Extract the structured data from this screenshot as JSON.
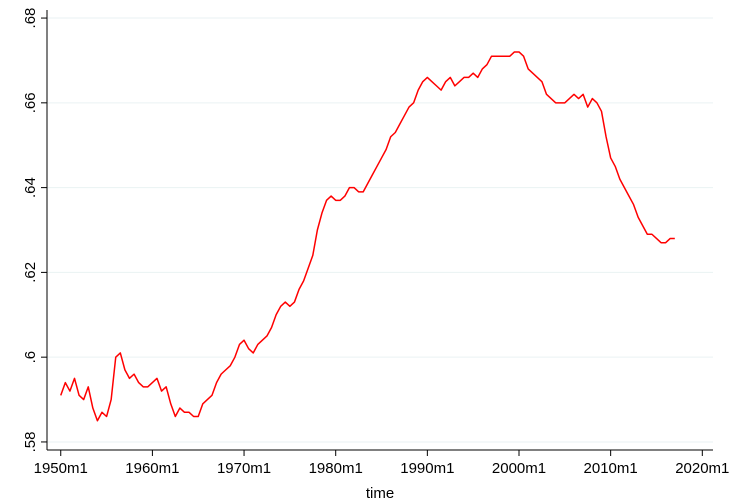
{
  "chart_data": {
    "type": "line",
    "x_label": "time",
    "x": [
      "1950m1",
      "1950m7",
      "1951m1",
      "1951m7",
      "1952m1",
      "1952m7",
      "1953m1",
      "1953m7",
      "1954m1",
      "1954m7",
      "1955m1",
      "1955m7",
      "1956m1",
      "1956m7",
      "1957m1",
      "1957m7",
      "1958m1",
      "1958m7",
      "1959m1",
      "1959m7",
      "1960m1",
      "1960m7",
      "1961m1",
      "1961m7",
      "1962m1",
      "1962m7",
      "1963m1",
      "1963m7",
      "1964m1",
      "1964m7",
      "1965m1",
      "1965m7",
      "1966m1",
      "1966m7",
      "1967m1",
      "1967m7",
      "1968m1",
      "1968m7",
      "1969m1",
      "1969m7",
      "1970m1",
      "1970m7",
      "1971m1",
      "1971m7",
      "1972m1",
      "1972m7",
      "1973m1",
      "1973m7",
      "1974m1",
      "1974m7",
      "1975m1",
      "1975m7",
      "1976m1",
      "1976m7",
      "1977m1",
      "1977m7",
      "1978m1",
      "1978m7",
      "1979m1",
      "1979m7",
      "1980m1",
      "1980m7",
      "1981m1",
      "1981m7",
      "1982m1",
      "1982m7",
      "1983m1",
      "1983m7",
      "1984m1",
      "1984m7",
      "1985m1",
      "1985m7",
      "1986m1",
      "1986m7",
      "1987m1",
      "1987m7",
      "1988m1",
      "1988m7",
      "1989m1",
      "1989m7",
      "1990m1",
      "1990m7",
      "1991m1",
      "1991m7",
      "1992m1",
      "1992m7",
      "1993m1",
      "1993m7",
      "1994m1",
      "1994m7",
      "1995m1",
      "1995m7",
      "1996m1",
      "1996m7",
      "1997m1",
      "1997m7",
      "1998m1",
      "1998m7",
      "1999m1",
      "1999m7",
      "2000m1",
      "2000m7",
      "2001m1",
      "2001m7",
      "2002m1",
      "2002m7",
      "2003m1",
      "2003m7",
      "2004m1",
      "2004m7",
      "2005m1",
      "2005m7",
      "2006m1",
      "2006m7",
      "2007m1",
      "2007m7",
      "2008m1",
      "2008m7",
      "2009m1",
      "2009m7",
      "2010m1",
      "2010m7",
      "2011m1",
      "2011m7",
      "2012m1",
      "2012m7",
      "2013m1",
      "2013m7",
      "2014m1",
      "2014m7",
      "2015m1",
      "2015m7",
      "2016m1",
      "2016m7",
      "2017m1"
    ],
    "series": [
      {
        "color": "#ff0000",
        "values": [
          0.591,
          0.594,
          0.592,
          0.595,
          0.591,
          0.59,
          0.593,
          0.588,
          0.585,
          0.587,
          0.586,
          0.59,
          0.6,
          0.601,
          0.597,
          0.595,
          0.596,
          0.594,
          0.593,
          0.593,
          0.594,
          0.595,
          0.592,
          0.593,
          0.589,
          0.586,
          0.588,
          0.587,
          0.587,
          0.586,
          0.586,
          0.589,
          0.59,
          0.591,
          0.594,
          0.596,
          0.597,
          0.598,
          0.6,
          0.603,
          0.604,
          0.602,
          0.601,
          0.603,
          0.604,
          0.605,
          0.607,
          0.61,
          0.612,
          0.613,
          0.612,
          0.613,
          0.616,
          0.618,
          0.621,
          0.624,
          0.63,
          0.634,
          0.637,
          0.638,
          0.637,
          0.637,
          0.638,
          0.64,
          0.64,
          0.639,
          0.639,
          0.641,
          0.643,
          0.645,
          0.647,
          0.649,
          0.652,
          0.653,
          0.655,
          0.657,
          0.659,
          0.66,
          0.663,
          0.665,
          0.666,
          0.665,
          0.664,
          0.663,
          0.665,
          0.666,
          0.664,
          0.665,
          0.666,
          0.666,
          0.667,
          0.666,
          0.668,
          0.669,
          0.671,
          0.671,
          0.671,
          0.671,
          0.671,
          0.672,
          0.672,
          0.671,
          0.668,
          0.667,
          0.666,
          0.665,
          0.662,
          0.661,
          0.66,
          0.66,
          0.66,
          0.661,
          0.662,
          0.661,
          0.662,
          0.659,
          0.661,
          0.66,
          0.658,
          0.652,
          0.647,
          0.645,
          0.642,
          0.64,
          0.638,
          0.636,
          0.633,
          0.631,
          0.629,
          0.629,
          0.628,
          0.627,
          0.627,
          0.628,
          0.628
        ]
      }
    ],
    "xlim": [
      "1948m7",
      "2021m3"
    ],
    "xticks": [
      "1950m1",
      "1960m1",
      "1970m1",
      "1980m1",
      "1990m1",
      "2000m1",
      "2010m1",
      "2020m1"
    ],
    "ylim": [
      0.5781,
      0.6819
    ],
    "yticks": [
      {
        "value": 0.58,
        "label": ".58"
      },
      {
        "value": 0.6,
        "label": ".6"
      },
      {
        "value": 0.62,
        "label": ".62"
      },
      {
        "value": 0.64,
        "label": ".64"
      },
      {
        "value": 0.66,
        "label": ".66"
      },
      {
        "value": 0.68,
        "label": ".68"
      }
    ],
    "grid": true
  }
}
